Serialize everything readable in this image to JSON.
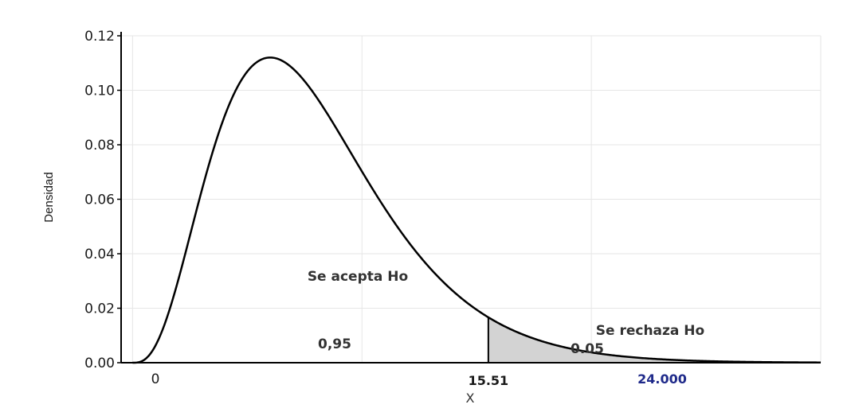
{
  "chart_data": {
    "type": "area",
    "distribution": "chi-square",
    "degrees_of_freedom": 8,
    "xlabel": "X",
    "ylabel": "Densidad",
    "xlim": [
      -0.5,
      30
    ],
    "ylim": [
      0,
      0.12
    ],
    "y_ticks": [
      "0.00",
      "0.02",
      "0.04",
      "0.06",
      "0.08",
      "0.10",
      "0.12"
    ],
    "x_tick_zero": "0",
    "grid": true,
    "critical_value": 15.51,
    "critical_label": "15.51",
    "test_statistic_label": "24.000",
    "acceptance_region": {
      "label": "Se acepta Ho",
      "probability": "0,95"
    },
    "rejection_region": {
      "label": "Se rechaza Ho",
      "probability": "0.05",
      "fill": "#d3d3d3"
    },
    "colors": {
      "curve": "#000000",
      "statistic": "#1f2a8a",
      "grid": "#e6e6e6"
    }
  }
}
